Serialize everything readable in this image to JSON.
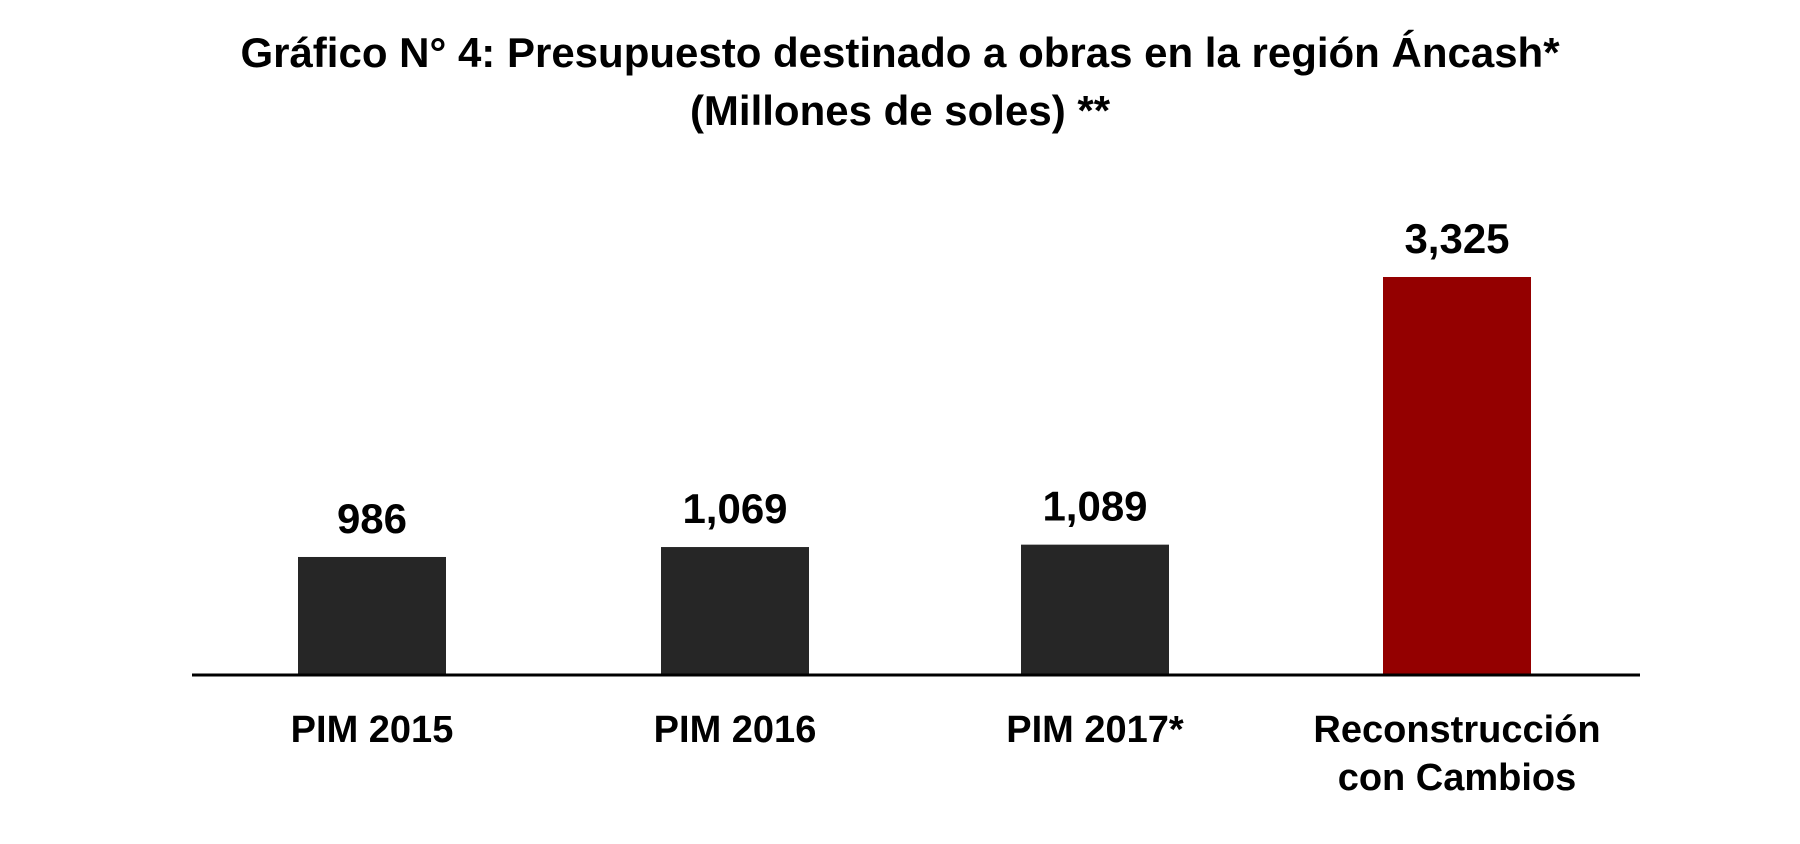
{
  "chart_data": {
    "type": "bar",
    "title": "Gráfico N° 4: Presupuesto destinado a obras en la región Áncash*",
    "subtitle": "(Millones de soles) **",
    "categories": [
      [
        "PIM 2015"
      ],
      [
        "PIM 2016"
      ],
      [
        "PIM 2017*"
      ],
      [
        "Reconstrucción",
        "con Cambios"
      ]
    ],
    "values": [
      986,
      1069,
      1089,
      3325
    ],
    "value_labels": [
      "986",
      "1,069",
      "1,089",
      "3,325"
    ],
    "colors": [
      "#262626",
      "#262626",
      "#262626",
      "#940000"
    ],
    "axis_color": "#000000",
    "ylim": [
      0,
      3325
    ],
    "grid": false,
    "legend": "none",
    "xlabel": "",
    "ylabel": ""
  }
}
